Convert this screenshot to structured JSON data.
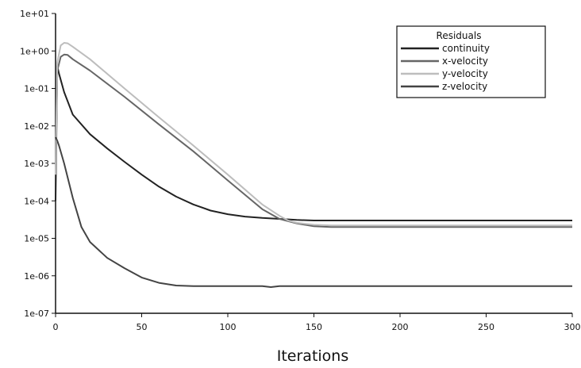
{
  "chart_data": {
    "type": "line",
    "title": "",
    "xlabel": "Iterations",
    "ylabel": "",
    "xscale": "linear",
    "yscale": "log",
    "xlim": [
      0,
      300
    ],
    "ylim": [
      1e-07,
      10
    ],
    "grid": false,
    "xticks": [
      0,
      50,
      100,
      150,
      200,
      250,
      300
    ],
    "xtick_labels": [
      "0",
      "50",
      "100",
      "150",
      "200",
      "250",
      "300"
    ],
    "yticks": [
      1e-07,
      1e-06,
      1e-05,
      0.0001,
      0.001,
      0.01,
      0.1,
      1,
      10
    ],
    "ytick_labels": [
      "1e-07",
      "1e-06",
      "1e-05",
      "1e-04",
      "1e-03",
      "1e-02",
      "1e-01",
      "1e+00",
      "1e+01"
    ],
    "legend": {
      "title": "Residuals",
      "placement": "top-right"
    },
    "series": [
      {
        "name": "continuity",
        "color": "#222222",
        "x": [
          0,
          1,
          2,
          5,
          10,
          20,
          30,
          40,
          50,
          60,
          70,
          80,
          90,
          100,
          110,
          120,
          130,
          140,
          150,
          200,
          250,
          300
        ],
        "y": [
          0.0001,
          0.4,
          0.25,
          0.08,
          0.02,
          0.006,
          0.0025,
          0.0011,
          0.0005,
          0.00024,
          0.00013,
          8e-05,
          5.5e-05,
          4.4e-05,
          3.8e-05,
          3.5e-05,
          3.3e-05,
          3.1e-05,
          3e-05,
          3e-05,
          3e-05,
          3e-05
        ]
      },
      {
        "name": "x-velocity",
        "color": "#666666",
        "x": [
          0,
          1,
          3,
          5,
          7,
          10,
          20,
          40,
          60,
          80,
          100,
          120,
          130,
          140,
          150,
          160,
          200,
          250,
          300
        ],
        "y": [
          0.001,
          0.3,
          0.7,
          0.8,
          0.78,
          0.6,
          0.3,
          0.06,
          0.011,
          0.0021,
          0.00035,
          6e-05,
          3.3e-05,
          2.5e-05,
          2.1e-05,
          2e-05,
          2e-05,
          2e-05,
          2e-05
        ]
      },
      {
        "name": "y-velocity",
        "color": "#bdbdbd",
        "x": [
          0,
          1,
          3,
          5,
          7,
          10,
          20,
          40,
          60,
          80,
          100,
          120,
          130,
          135,
          140,
          150,
          160,
          170,
          200,
          250,
          300
        ],
        "y": [
          0.0005,
          0.5,
          1.4,
          1.65,
          1.6,
          1.3,
          0.6,
          0.1,
          0.017,
          0.003,
          0.0005,
          8e-05,
          4e-05,
          3e-05,
          2.6e-05,
          2.3e-05,
          2.2e-05,
          2.2e-05,
          2.2e-05,
          2.2e-05,
          2.2e-05
        ]
      },
      {
        "name": "z-velocity",
        "color": "#444444",
        "x": [
          0,
          1,
          2,
          5,
          10,
          15,
          20,
          30,
          40,
          50,
          60,
          70,
          80,
          100,
          120,
          125,
          130,
          150,
          200,
          250,
          300
        ],
        "y": [
          0.005,
          0.004,
          0.003,
          0.001,
          0.00012,
          2e-05,
          8e-06,
          3e-06,
          1.6e-06,
          9e-07,
          6.5e-07,
          5.5e-07,
          5.3e-07,
          5.3e-07,
          5.3e-07,
          5e-07,
          5.3e-07,
          5.3e-07,
          5.3e-07,
          5.3e-07,
          5.3e-07
        ]
      }
    ]
  }
}
